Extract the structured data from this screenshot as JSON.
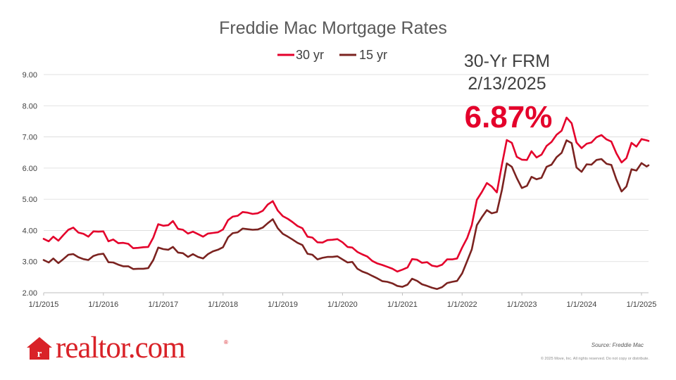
{
  "chart_data": {
    "type": "line",
    "title": "Freddie Mac Mortgage Rates",
    "ylim": [
      2.0,
      9.0
    ],
    "yticks": [
      "2.00",
      "3.00",
      "4.00",
      "5.00",
      "6.00",
      "7.00",
      "8.00",
      "9.00"
    ],
    "xlim": [
      "2015-01-01",
      "2025-02-13"
    ],
    "xticks": [
      "1/1/2015",
      "1/1/2016",
      "1/1/2017",
      "1/1/2018",
      "1/1/2019",
      "1/1/2020",
      "1/1/2021",
      "1/1/2022",
      "1/1/2023",
      "1/1/2024",
      "1/1/2025"
    ],
    "grid": "horizontal",
    "legend_position": "top",
    "series": [
      {
        "name": "30 yr",
        "color": "#e4002b",
        "points": [
          [
            "2015-01-01",
            3.73
          ],
          [
            "2015-02-01",
            3.65
          ],
          [
            "2015-03-01",
            3.8
          ],
          [
            "2015-04-01",
            3.67
          ],
          [
            "2015-05-01",
            3.85
          ],
          [
            "2015-06-01",
            4.02
          ],
          [
            "2015-07-01",
            4.09
          ],
          [
            "2015-08-01",
            3.93
          ],
          [
            "2015-09-01",
            3.89
          ],
          [
            "2015-10-01",
            3.8
          ],
          [
            "2015-11-01",
            3.97
          ],
          [
            "2015-12-01",
            3.96
          ],
          [
            "2016-01-01",
            3.97
          ],
          [
            "2016-02-01",
            3.65
          ],
          [
            "2016-03-01",
            3.71
          ],
          [
            "2016-04-01",
            3.59
          ],
          [
            "2016-05-01",
            3.6
          ],
          [
            "2016-06-01",
            3.57
          ],
          [
            "2016-07-01",
            3.43
          ],
          [
            "2016-08-01",
            3.44
          ],
          [
            "2016-09-01",
            3.46
          ],
          [
            "2016-10-01",
            3.47
          ],
          [
            "2016-11-01",
            3.77
          ],
          [
            "2016-12-01",
            4.2
          ],
          [
            "2017-01-01",
            4.15
          ],
          [
            "2017-02-01",
            4.17
          ],
          [
            "2017-03-01",
            4.3
          ],
          [
            "2017-04-01",
            4.05
          ],
          [
            "2017-05-01",
            4.02
          ],
          [
            "2017-06-01",
            3.9
          ],
          [
            "2017-07-01",
            3.96
          ],
          [
            "2017-08-01",
            3.88
          ],
          [
            "2017-09-01",
            3.8
          ],
          [
            "2017-10-01",
            3.9
          ],
          [
            "2017-11-01",
            3.92
          ],
          [
            "2017-12-01",
            3.94
          ],
          [
            "2018-01-01",
            4.03
          ],
          [
            "2018-02-01",
            4.33
          ],
          [
            "2018-03-01",
            4.44
          ],
          [
            "2018-04-01",
            4.47
          ],
          [
            "2018-05-01",
            4.59
          ],
          [
            "2018-06-01",
            4.57
          ],
          [
            "2018-07-01",
            4.53
          ],
          [
            "2018-08-01",
            4.55
          ],
          [
            "2018-09-01",
            4.63
          ],
          [
            "2018-10-01",
            4.83
          ],
          [
            "2018-11-01",
            4.94
          ],
          [
            "2018-12-01",
            4.64
          ],
          [
            "2019-01-01",
            4.46
          ],
          [
            "2019-02-01",
            4.37
          ],
          [
            "2019-03-01",
            4.27
          ],
          [
            "2019-04-01",
            4.14
          ],
          [
            "2019-05-01",
            4.07
          ],
          [
            "2019-06-01",
            3.8
          ],
          [
            "2019-07-01",
            3.77
          ],
          [
            "2019-08-01",
            3.62
          ],
          [
            "2019-09-01",
            3.61
          ],
          [
            "2019-10-01",
            3.69
          ],
          [
            "2019-11-01",
            3.7
          ],
          [
            "2019-12-01",
            3.72
          ],
          [
            "2020-01-01",
            3.62
          ],
          [
            "2020-02-01",
            3.47
          ],
          [
            "2020-03-01",
            3.45
          ],
          [
            "2020-04-01",
            3.31
          ],
          [
            "2020-05-01",
            3.23
          ],
          [
            "2020-06-01",
            3.16
          ],
          [
            "2020-07-01",
            3.02
          ],
          [
            "2020-08-01",
            2.94
          ],
          [
            "2020-09-01",
            2.89
          ],
          [
            "2020-10-01",
            2.83
          ],
          [
            "2020-11-01",
            2.77
          ],
          [
            "2020-12-01",
            2.68
          ],
          [
            "2021-01-01",
            2.74
          ],
          [
            "2021-02-01",
            2.81
          ],
          [
            "2021-03-01",
            3.08
          ],
          [
            "2021-04-01",
            3.06
          ],
          [
            "2021-05-01",
            2.96
          ],
          [
            "2021-06-01",
            2.98
          ],
          [
            "2021-07-01",
            2.87
          ],
          [
            "2021-08-01",
            2.84
          ],
          [
            "2021-09-01",
            2.9
          ],
          [
            "2021-10-01",
            3.07
          ],
          [
            "2021-11-01",
            3.07
          ],
          [
            "2021-12-01",
            3.1
          ],
          [
            "2022-01-01",
            3.45
          ],
          [
            "2022-02-01",
            3.76
          ],
          [
            "2022-03-01",
            4.17
          ],
          [
            "2022-04-01",
            4.98
          ],
          [
            "2022-05-01",
            5.23
          ],
          [
            "2022-06-01",
            5.52
          ],
          [
            "2022-07-01",
            5.41
          ],
          [
            "2022-08-01",
            5.22
          ],
          [
            "2022-09-01",
            6.11
          ],
          [
            "2022-10-01",
            6.9
          ],
          [
            "2022-11-01",
            6.81
          ],
          [
            "2022-12-01",
            6.36
          ],
          [
            "2023-01-01",
            6.27
          ],
          [
            "2023-02-01",
            6.26
          ],
          [
            "2023-03-01",
            6.54
          ],
          [
            "2023-04-01",
            6.34
          ],
          [
            "2023-05-01",
            6.43
          ],
          [
            "2023-06-01",
            6.71
          ],
          [
            "2023-07-01",
            6.84
          ],
          [
            "2023-08-01",
            7.07
          ],
          [
            "2023-09-01",
            7.2
          ],
          [
            "2023-10-01",
            7.62
          ],
          [
            "2023-11-01",
            7.44
          ],
          [
            "2023-12-01",
            6.82
          ],
          [
            "2024-01-01",
            6.64
          ],
          [
            "2024-02-01",
            6.78
          ],
          [
            "2024-03-01",
            6.82
          ],
          [
            "2024-04-01",
            6.99
          ],
          [
            "2024-05-01",
            7.06
          ],
          [
            "2024-06-01",
            6.92
          ],
          [
            "2024-07-01",
            6.85
          ],
          [
            "2024-08-01",
            6.47
          ],
          [
            "2024-09-01",
            6.18
          ],
          [
            "2024-10-01",
            6.32
          ],
          [
            "2024-11-01",
            6.81
          ],
          [
            "2024-12-01",
            6.69
          ],
          [
            "2025-01-01",
            6.93
          ],
          [
            "2025-02-01",
            6.89
          ],
          [
            "2025-02-13",
            6.87
          ]
        ]
      },
      {
        "name": "15 yr",
        "color": "#7b2320",
        "points": [
          [
            "2015-01-01",
            3.05
          ],
          [
            "2015-02-01",
            2.97
          ],
          [
            "2015-03-01",
            3.1
          ],
          [
            "2015-04-01",
            2.95
          ],
          [
            "2015-05-01",
            3.08
          ],
          [
            "2015-06-01",
            3.22
          ],
          [
            "2015-07-01",
            3.24
          ],
          [
            "2015-08-01",
            3.14
          ],
          [
            "2015-09-01",
            3.08
          ],
          [
            "2015-10-01",
            3.05
          ],
          [
            "2015-11-01",
            3.18
          ],
          [
            "2015-12-01",
            3.23
          ],
          [
            "2016-01-01",
            3.25
          ],
          [
            "2016-02-01",
            2.98
          ],
          [
            "2016-03-01",
            2.97
          ],
          [
            "2016-04-01",
            2.9
          ],
          [
            "2016-05-01",
            2.85
          ],
          [
            "2016-06-01",
            2.85
          ],
          [
            "2016-07-01",
            2.76
          ],
          [
            "2016-08-01",
            2.77
          ],
          [
            "2016-09-01",
            2.77
          ],
          [
            "2016-10-01",
            2.79
          ],
          [
            "2016-11-01",
            3.05
          ],
          [
            "2016-12-01",
            3.45
          ],
          [
            "2017-01-01",
            3.4
          ],
          [
            "2017-02-01",
            3.38
          ],
          [
            "2017-03-01",
            3.47
          ],
          [
            "2017-04-01",
            3.29
          ],
          [
            "2017-05-01",
            3.27
          ],
          [
            "2017-06-01",
            3.15
          ],
          [
            "2017-07-01",
            3.24
          ],
          [
            "2017-08-01",
            3.15
          ],
          [
            "2017-09-01",
            3.1
          ],
          [
            "2017-10-01",
            3.24
          ],
          [
            "2017-11-01",
            3.33
          ],
          [
            "2017-12-01",
            3.38
          ],
          [
            "2018-01-01",
            3.46
          ],
          [
            "2018-02-01",
            3.78
          ],
          [
            "2018-03-01",
            3.91
          ],
          [
            "2018-04-01",
            3.94
          ],
          [
            "2018-05-01",
            4.06
          ],
          [
            "2018-06-01",
            4.04
          ],
          [
            "2018-07-01",
            4.02
          ],
          [
            "2018-08-01",
            4.03
          ],
          [
            "2018-09-01",
            4.09
          ],
          [
            "2018-10-01",
            4.23
          ],
          [
            "2018-11-01",
            4.36
          ],
          [
            "2018-12-01",
            4.07
          ],
          [
            "2019-01-01",
            3.89
          ],
          [
            "2019-02-01",
            3.8
          ],
          [
            "2019-03-01",
            3.71
          ],
          [
            "2019-04-01",
            3.6
          ],
          [
            "2019-05-01",
            3.53
          ],
          [
            "2019-06-01",
            3.25
          ],
          [
            "2019-07-01",
            3.22
          ],
          [
            "2019-08-01",
            3.07
          ],
          [
            "2019-09-01",
            3.12
          ],
          [
            "2019-10-01",
            3.15
          ],
          [
            "2019-11-01",
            3.15
          ],
          [
            "2019-12-01",
            3.17
          ],
          [
            "2020-01-01",
            3.07
          ],
          [
            "2020-02-01",
            2.97
          ],
          [
            "2020-03-01",
            2.99
          ],
          [
            "2020-04-01",
            2.77
          ],
          [
            "2020-05-01",
            2.68
          ],
          [
            "2020-06-01",
            2.62
          ],
          [
            "2020-07-01",
            2.54
          ],
          [
            "2020-08-01",
            2.46
          ],
          [
            "2020-09-01",
            2.37
          ],
          [
            "2020-10-01",
            2.35
          ],
          [
            "2020-11-01",
            2.3
          ],
          [
            "2020-12-01",
            2.22
          ],
          [
            "2021-01-01",
            2.19
          ],
          [
            "2021-02-01",
            2.26
          ],
          [
            "2021-03-01",
            2.45
          ],
          [
            "2021-04-01",
            2.38
          ],
          [
            "2021-05-01",
            2.27
          ],
          [
            "2021-06-01",
            2.22
          ],
          [
            "2021-07-01",
            2.16
          ],
          [
            "2021-08-01",
            2.12
          ],
          [
            "2021-09-01",
            2.18
          ],
          [
            "2021-10-01",
            2.31
          ],
          [
            "2021-11-01",
            2.35
          ],
          [
            "2021-12-01",
            2.38
          ],
          [
            "2022-01-01",
            2.62
          ],
          [
            "2022-02-01",
            3.02
          ],
          [
            "2022-03-01",
            3.39
          ],
          [
            "2022-04-01",
            4.17
          ],
          [
            "2022-05-01",
            4.42
          ],
          [
            "2022-06-01",
            4.65
          ],
          [
            "2022-07-01",
            4.55
          ],
          [
            "2022-08-01",
            4.59
          ],
          [
            "2022-09-01",
            5.3
          ],
          [
            "2022-10-01",
            6.15
          ],
          [
            "2022-11-01",
            6.04
          ],
          [
            "2022-12-01",
            5.68
          ],
          [
            "2023-01-01",
            5.36
          ],
          [
            "2023-02-01",
            5.43
          ],
          [
            "2023-03-01",
            5.72
          ],
          [
            "2023-04-01",
            5.64
          ],
          [
            "2023-05-01",
            5.69
          ],
          [
            "2023-06-01",
            6.04
          ],
          [
            "2023-07-01",
            6.11
          ],
          [
            "2023-08-01",
            6.35
          ],
          [
            "2023-09-01",
            6.49
          ],
          [
            "2023-10-01",
            6.89
          ],
          [
            "2023-11-01",
            6.8
          ],
          [
            "2023-12-01",
            6.02
          ],
          [
            "2024-01-01",
            5.88
          ],
          [
            "2024-02-01",
            6.12
          ],
          [
            "2024-03-01",
            6.11
          ],
          [
            "2024-04-01",
            6.26
          ],
          [
            "2024-05-01",
            6.29
          ],
          [
            "2024-06-01",
            6.14
          ],
          [
            "2024-07-01",
            6.1
          ],
          [
            "2024-08-01",
            5.63
          ],
          [
            "2024-09-01",
            5.25
          ],
          [
            "2024-10-01",
            5.41
          ],
          [
            "2024-11-01",
            5.96
          ],
          [
            "2024-12-01",
            5.92
          ],
          [
            "2025-01-01",
            6.16
          ],
          [
            "2025-02-01",
            6.05
          ],
          [
            "2025-02-13",
            6.09
          ]
        ]
      }
    ]
  },
  "callout": {
    "line1": "30-Yr FRM",
    "line2": "2/13/2025",
    "value": "6.87%"
  },
  "brand": {
    "logo_text": "realtor.com",
    "registered_mark": "®",
    "color": "#d92228"
  },
  "footer": {
    "source": "Source: Freddie Mac",
    "copyright": "© 2025 Move, Inc. All rights reserved. Do not copy or distribute."
  }
}
